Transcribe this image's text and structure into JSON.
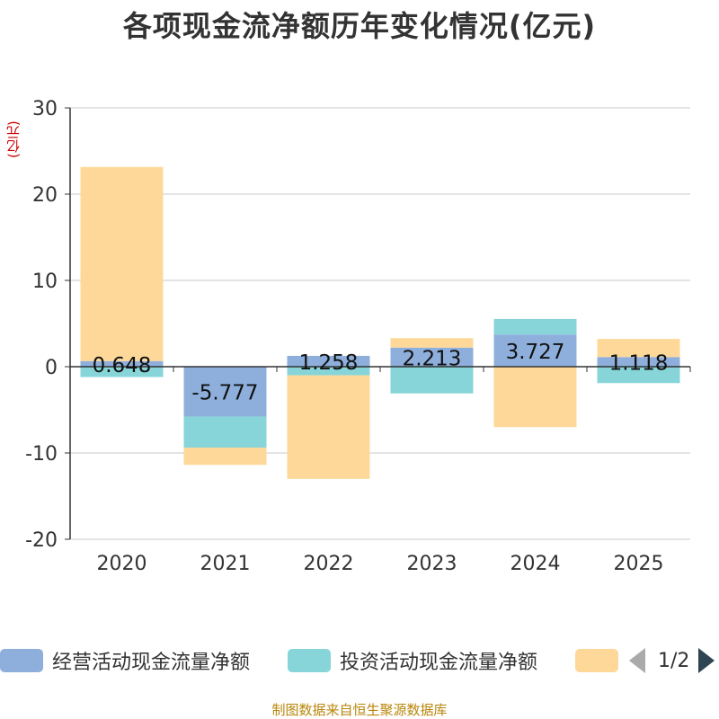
{
  "title": "各项现金流净额历年变化情况(亿元)",
  "unit_label": "(亿元)",
  "footer": "制图数据来自恒生聚源数据库",
  "legend": {
    "items": [
      {
        "label": "经营活动现金流量净额",
        "color": "#8eafdc"
      },
      {
        "label": "投资活动现金流量净额",
        "color": "#87d5d9"
      },
      {
        "label": "",
        "color": "#fed898"
      }
    ],
    "page_label": "1/2"
  },
  "chart_data": {
    "type": "bar",
    "stacked": true,
    "title": "各项现金流净额历年变化情况(亿元)",
    "ylabel": "(亿元)",
    "categories": [
      "2020",
      "2021",
      "2022",
      "2023",
      "2024",
      "2025"
    ],
    "ylim": [
      -20,
      30
    ],
    "yticks": [
      -20,
      -10,
      0,
      10,
      20,
      30
    ],
    "grid": true,
    "series": [
      {
        "name": "经营活动现金流量净额",
        "color": "#8eafdc",
        "values": [
          0.648,
          -5.777,
          1.258,
          2.213,
          3.727,
          1.118
        ]
      },
      {
        "name": "投资活动现金流量净额",
        "color": "#87d5d9",
        "values": [
          -1.2,
          -3.6,
          -1.0,
          -3.1,
          1.8,
          -1.9
        ]
      },
      {
        "name": "",
        "color": "#fed898",
        "values": [
          22.5,
          -2.0,
          -12.0,
          1.1,
          -7.0,
          2.1
        ]
      }
    ],
    "data_labels": [
      "0.648",
      "-5.777",
      "1.258",
      "2.213",
      "3.727",
      "1.118"
    ]
  }
}
